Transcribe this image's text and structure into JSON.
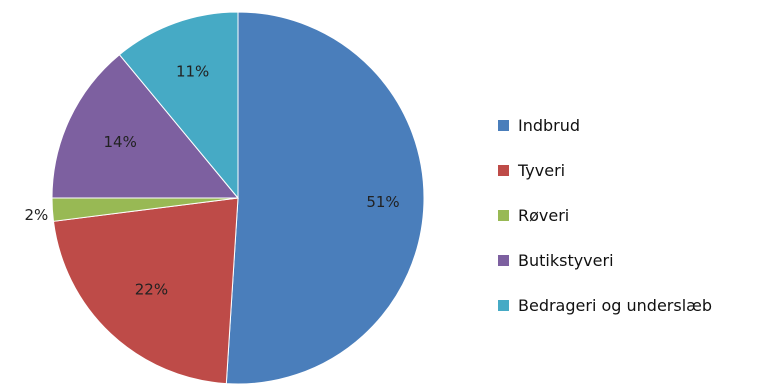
{
  "chart_data": {
    "type": "pie",
    "categories": [
      "Indbrud",
      "Tyveri",
      "Røveri",
      "Butikstyveri",
      "Bedrageri og underslæb"
    ],
    "values": [
      51,
      22,
      2,
      14,
      11
    ],
    "labels": [
      "51%",
      "22%",
      "2%",
      "14%",
      "11%"
    ],
    "colors": [
      "#4a7ebb",
      "#be4b48",
      "#98b954",
      "#7d60a0",
      "#46aac5"
    ],
    "legend_position": "right"
  }
}
